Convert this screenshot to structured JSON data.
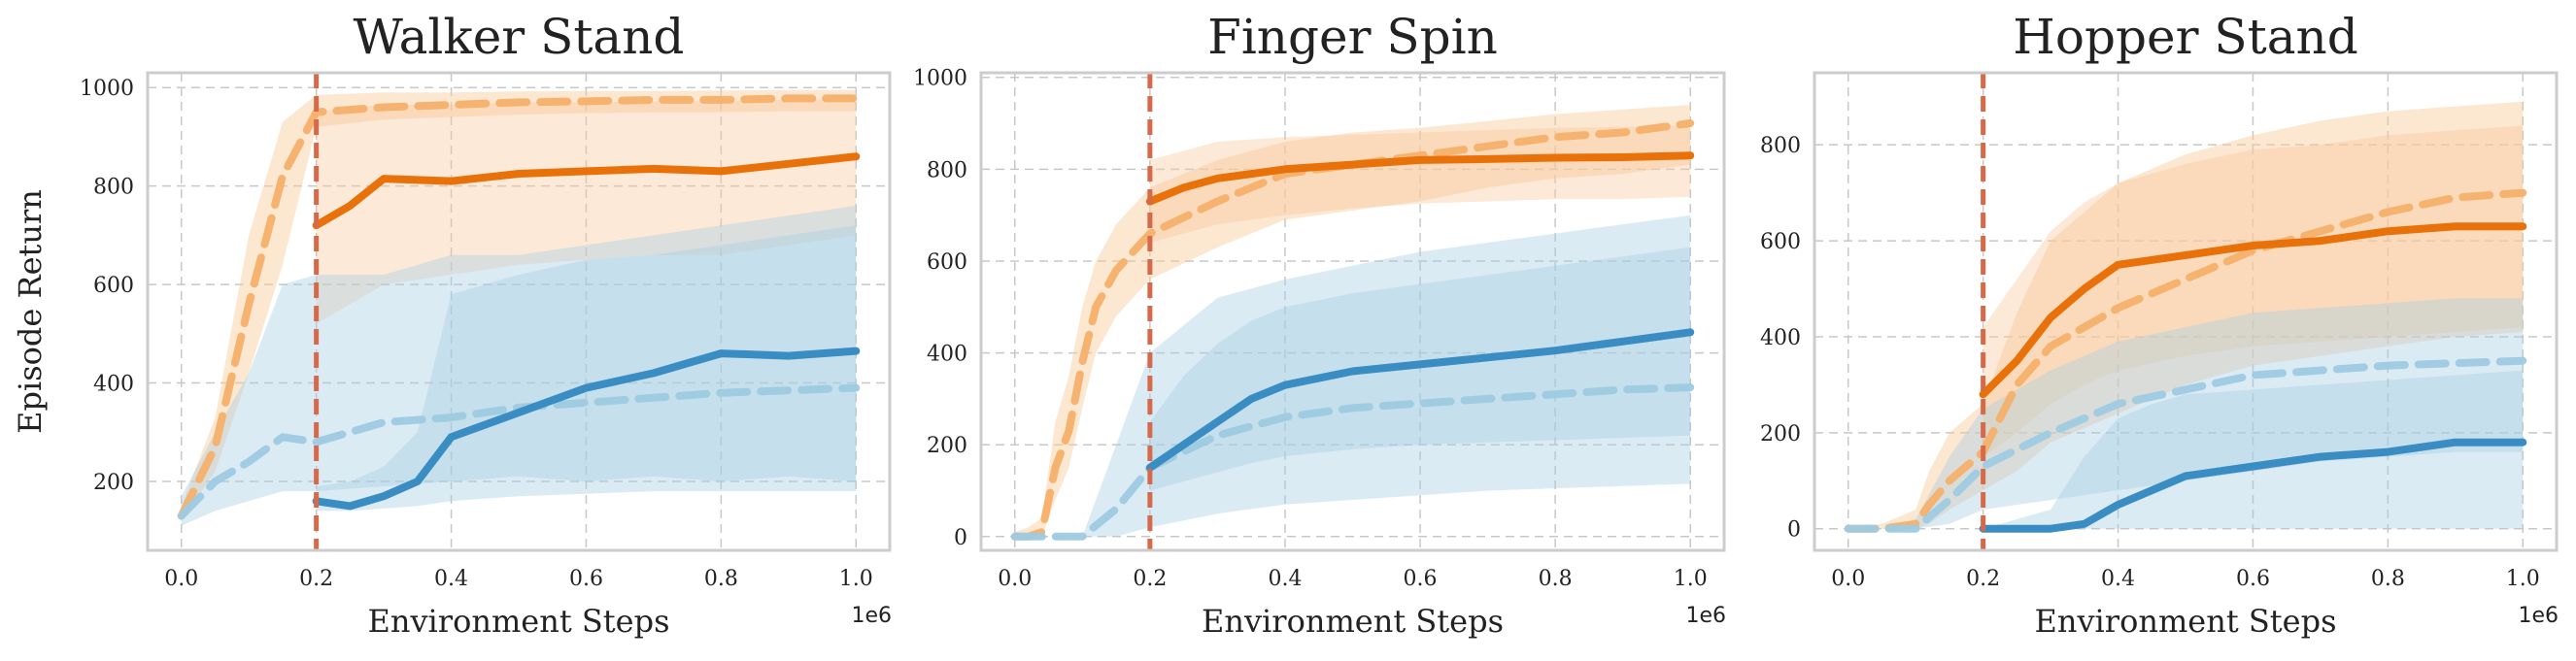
{
  "colors": {
    "orange_solid": "#e8710a",
    "orange_dashed": "#f5b06a",
    "orange_band": "#f9c99a",
    "blue_solid": "#3a8dc2",
    "blue_dashed": "#9ecae1",
    "blue_band": "#a6cde3",
    "vline": "#d6694a"
  },
  "chart_data": [
    {
      "type": "line",
      "title": "Walker Stand",
      "xlabel": "Environment Steps",
      "ylabel": "Episode Return",
      "x_multiplier": "1e6",
      "xlim": [
        -0.05,
        1.05
      ],
      "ylim": [
        60,
        1030
      ],
      "xticks": [
        0.0,
        0.2,
        0.4,
        0.6,
        0.8,
        1.0
      ],
      "xtick_labels": [
        "0.0",
        "0.2",
        "0.4",
        "0.6",
        "0.8",
        "1.0"
      ],
      "yticks": [
        200,
        400,
        600,
        800,
        1000
      ],
      "ytick_labels": [
        "200",
        "400",
        "600",
        "800",
        "1000"
      ],
      "grid": true,
      "vline_x": 0.2,
      "series": [
        {
          "style": "orange_dashed",
          "x": [
            0.0,
            0.05,
            0.1,
            0.15,
            0.2,
            0.3,
            0.4,
            0.5,
            0.6,
            0.7,
            0.8,
            0.9,
            1.0
          ],
          "values": [
            130,
            270,
            560,
            820,
            950,
            960,
            965,
            970,
            972,
            975,
            975,
            978,
            978
          ],
          "lower": [
            120,
            220,
            420,
            640,
            920,
            935,
            940,
            945,
            948,
            950,
            950,
            952,
            952
          ],
          "upper": [
            150,
            330,
            700,
            930,
            985,
            990,
            990,
            992,
            993,
            993,
            994,
            995,
            995
          ]
        },
        {
          "style": "orange_solid",
          "x": [
            0.2,
            0.25,
            0.3,
            0.4,
            0.5,
            0.6,
            0.7,
            0.8,
            0.9,
            1.0
          ],
          "values": [
            720,
            760,
            815,
            810,
            825,
            830,
            835,
            830,
            845,
            860
          ],
          "lower": [
            520,
            560,
            600,
            620,
            640,
            650,
            660,
            660,
            680,
            700
          ],
          "upper": [
            950,
            960,
            965,
            965,
            970,
            970,
            972,
            972,
            975,
            975
          ]
        },
        {
          "style": "blue_dashed",
          "x": [
            0.0,
            0.05,
            0.1,
            0.15,
            0.2,
            0.3,
            0.4,
            0.5,
            0.6,
            0.7,
            0.8,
            0.9,
            1.0
          ],
          "values": [
            130,
            200,
            240,
            290,
            280,
            320,
            330,
            350,
            360,
            370,
            380,
            385,
            390
          ],
          "lower": [
            110,
            140,
            160,
            180,
            180,
            190,
            200,
            210,
            200,
            210,
            200,
            210,
            200
          ],
          "upper": [
            170,
            300,
            420,
            600,
            620,
            620,
            660,
            660,
            680,
            700,
            720,
            740,
            760
          ]
        },
        {
          "style": "blue_solid",
          "x": [
            0.2,
            0.25,
            0.3,
            0.35,
            0.4,
            0.5,
            0.6,
            0.7,
            0.8,
            0.9,
            1.0
          ],
          "values": [
            160,
            150,
            170,
            200,
            290,
            340,
            390,
            420,
            460,
            455,
            465
          ],
          "lower": [
            140,
            140,
            145,
            150,
            160,
            170,
            175,
            180,
            180,
            180,
            180
          ],
          "upper": [
            190,
            200,
            230,
            300,
            580,
            620,
            650,
            660,
            680,
            700,
            720
          ]
        }
      ]
    },
    {
      "type": "line",
      "title": "Finger Spin",
      "xlabel": "Environment Steps",
      "ylabel": "",
      "x_multiplier": "1e6",
      "xlim": [
        -0.05,
        1.05
      ],
      "ylim": [
        -30,
        1010
      ],
      "xticks": [
        0.0,
        0.2,
        0.4,
        0.6,
        0.8,
        1.0
      ],
      "xtick_labels": [
        "0.0",
        "0.2",
        "0.4",
        "0.6",
        "0.8",
        "1.0"
      ],
      "yticks": [
        0,
        200,
        400,
        600,
        800,
        1000
      ],
      "ytick_labels": [
        "0",
        "200",
        "400",
        "600",
        "800",
        "1000"
      ],
      "grid": true,
      "vline_x": 0.2,
      "series": [
        {
          "style": "orange_dashed",
          "x": [
            0.0,
            0.02,
            0.04,
            0.06,
            0.08,
            0.1,
            0.12,
            0.15,
            0.2,
            0.3,
            0.4,
            0.5,
            0.6,
            0.7,
            0.8,
            0.9,
            1.0
          ],
          "values": [
            0,
            0,
            10,
            150,
            230,
            380,
            500,
            580,
            660,
            730,
            790,
            810,
            830,
            850,
            870,
            880,
            900
          ],
          "lower": [
            0,
            0,
            0,
            80,
            150,
            280,
            400,
            480,
            560,
            630,
            690,
            710,
            730,
            760,
            780,
            790,
            810
          ],
          "upper": [
            10,
            20,
            40,
            250,
            350,
            500,
            600,
            680,
            760,
            820,
            860,
            880,
            890,
            905,
            920,
            930,
            940
          ]
        },
        {
          "style": "orange_solid",
          "x": [
            0.2,
            0.25,
            0.3,
            0.35,
            0.4,
            0.5,
            0.6,
            0.7,
            0.8,
            0.9,
            1.0
          ],
          "values": [
            730,
            760,
            780,
            790,
            800,
            810,
            820,
            822,
            825,
            826,
            830
          ],
          "lower": [
            640,
            660,
            680,
            690,
            700,
            715,
            725,
            730,
            735,
            735,
            740
          ],
          "upper": [
            820,
            840,
            860,
            865,
            870,
            875,
            880,
            885,
            890,
            892,
            895
          ]
        },
        {
          "style": "blue_dashed",
          "x": [
            0.0,
            0.05,
            0.1,
            0.15,
            0.2,
            0.3,
            0.4,
            0.5,
            0.6,
            0.7,
            0.8,
            0.9,
            1.0
          ],
          "values": [
            0,
            0,
            0,
            60,
            150,
            220,
            260,
            280,
            290,
            300,
            310,
            320,
            325
          ],
          "lower": [
            0,
            0,
            0,
            0,
            20,
            50,
            70,
            80,
            90,
            100,
            105,
            110,
            115
          ],
          "upper": [
            0,
            0,
            0,
            200,
            400,
            520,
            560,
            590,
            620,
            640,
            660,
            680,
            700
          ]
        },
        {
          "style": "blue_solid",
          "x": [
            0.2,
            0.25,
            0.3,
            0.35,
            0.4,
            0.5,
            0.6,
            0.7,
            0.8,
            0.9,
            1.0
          ],
          "values": [
            150,
            200,
            250,
            300,
            330,
            360,
            375,
            390,
            405,
            425,
            445
          ],
          "lower": [
            100,
            120,
            140,
            160,
            175,
            190,
            200,
            205,
            210,
            215,
            220
          ],
          "upper": [
            250,
            350,
            420,
            470,
            500,
            530,
            550,
            570,
            590,
            610,
            630
          ]
        }
      ]
    },
    {
      "type": "line",
      "title": "Hopper Stand",
      "xlabel": "Environment Steps",
      "ylabel": "",
      "x_multiplier": "1e6",
      "xlim": [
        -0.05,
        1.05
      ],
      "ylim": [
        -45,
        950
      ],
      "xticks": [
        0.0,
        0.2,
        0.4,
        0.6,
        0.8,
        1.0
      ],
      "xtick_labels": [
        "0.0",
        "0.2",
        "0.4",
        "0.6",
        "0.8",
        "1.0"
      ],
      "yticks": [
        0,
        200,
        400,
        600,
        800
      ],
      "ytick_labels": [
        "0",
        "200",
        "400",
        "600",
        "800"
      ],
      "grid": true,
      "vline_x": 0.2,
      "series": [
        {
          "style": "orange_dashed",
          "x": [
            0.0,
            0.05,
            0.1,
            0.12,
            0.15,
            0.2,
            0.25,
            0.3,
            0.4,
            0.5,
            0.6,
            0.7,
            0.8,
            0.9,
            1.0
          ],
          "values": [
            0,
            0,
            10,
            50,
            100,
            160,
            300,
            380,
            460,
            520,
            580,
            620,
            660,
            690,
            700
          ],
          "lower": [
            0,
            0,
            0,
            10,
            40,
            80,
            120,
            180,
            240,
            300,
            340,
            360,
            380,
            400,
            410
          ],
          "upper": [
            0,
            10,
            40,
            120,
            200,
            260,
            450,
            600,
            720,
            780,
            820,
            850,
            870,
            880,
            890
          ]
        },
        {
          "style": "orange_solid",
          "x": [
            0.2,
            0.25,
            0.3,
            0.35,
            0.4,
            0.5,
            0.6,
            0.7,
            0.8,
            0.9,
            1.0
          ],
          "values": [
            280,
            350,
            440,
            500,
            550,
            570,
            590,
            600,
            620,
            630,
            630
          ],
          "lower": [
            150,
            200,
            260,
            300,
            330,
            360,
            380,
            390,
            400,
            410,
            420
          ],
          "upper": [
            420,
            520,
            620,
            680,
            720,
            760,
            790,
            800,
            820,
            830,
            840
          ]
        },
        {
          "style": "blue_dashed",
          "x": [
            0.0,
            0.05,
            0.1,
            0.15,
            0.2,
            0.3,
            0.4,
            0.5,
            0.6,
            0.7,
            0.8,
            0.9,
            1.0
          ],
          "values": [
            0,
            0,
            0,
            60,
            130,
            200,
            260,
            290,
            320,
            330,
            340,
            345,
            350
          ],
          "lower": [
            0,
            0,
            0,
            10,
            40,
            60,
            80,
            100,
            120,
            140,
            150,
            160,
            160
          ],
          "upper": [
            0,
            0,
            20,
            150,
            250,
            330,
            390,
            420,
            450,
            460,
            470,
            480,
            480
          ]
        },
        {
          "style": "blue_solid",
          "x": [
            0.2,
            0.3,
            0.35,
            0.4,
            0.45,
            0.5,
            0.6,
            0.7,
            0.8,
            0.9,
            1.0
          ],
          "values": [
            0,
            0,
            10,
            50,
            80,
            110,
            130,
            150,
            160,
            180,
            180
          ],
          "lower": [
            0,
            0,
            0,
            0,
            0,
            0,
            0,
            0,
            0,
            0,
            0
          ],
          "upper": [
            0,
            40,
            150,
            230,
            260,
            280,
            290,
            300,
            310,
            320,
            330
          ]
        }
      ]
    }
  ]
}
